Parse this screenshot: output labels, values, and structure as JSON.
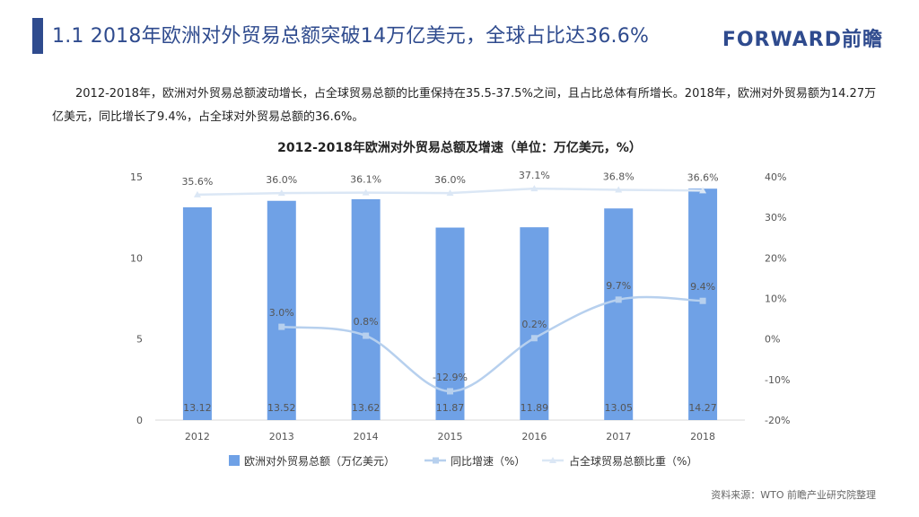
{
  "header": {
    "title": "1.1 2018年欧洲对外贸易总额突破14万亿美元，全球占比达36.6%",
    "logo": "FORWARD前瞻"
  },
  "paragraph": "2012-2018年，欧洲对外贸易总额波动增长，占全球贸易总额的比重保持在35.5-37.5%之间，且占比总体有所增长。2018年，欧洲对外贸易额为14.27万亿美元，同比增长了9.4%，占全球对外贸易总额的36.6%。",
  "source": "资料来源：WTO  前瞻产业研究院整理",
  "colors": {
    "bar": "#6fa1e6",
    "growth": "#b7d0ee",
    "share": "#dbe7f5"
  },
  "chart_data": {
    "type": "bar",
    "title": "2012-2018年欧洲对外贸易总额及增速（单位：万亿美元，%）",
    "categories": [
      "2012",
      "2013",
      "2014",
      "2015",
      "2016",
      "2017",
      "2018"
    ],
    "series": [
      {
        "name": "欧洲对外贸易总额（万亿美元）",
        "type": "bar",
        "axis": "left",
        "values": [
          13.12,
          13.52,
          13.62,
          11.87,
          11.89,
          13.05,
          14.27
        ],
        "labels": [
          "13.12",
          "13.52",
          "13.62",
          "11.87",
          "11.89",
          "13.05",
          "14.27"
        ]
      },
      {
        "name": "同比增速（%）",
        "type": "line",
        "axis": "right",
        "smooth": true,
        "values": [
          null,
          3.0,
          0.8,
          -12.9,
          0.2,
          9.7,
          9.4
        ],
        "labels": [
          "",
          "3.0%",
          "0.8%",
          "-12.9%",
          "0.2%",
          "9.7%",
          "9.4%"
        ]
      },
      {
        "name": "占全球贸易总额比重（%）",
        "type": "line",
        "axis": "right",
        "values": [
          35.6,
          36.0,
          36.1,
          36.0,
          37.1,
          36.8,
          36.6
        ],
        "labels": [
          "35.6%",
          "36.0%",
          "36.1%",
          "36.0%",
          "37.1%",
          "36.8%",
          "36.6%"
        ]
      }
    ],
    "yleft": {
      "range": [
        0,
        15
      ],
      "ticks": [
        "0",
        "5",
        "10",
        "15"
      ]
    },
    "yright": {
      "range": [
        -20,
        40
      ],
      "ticks": [
        "-20%",
        "-10%",
        "0%",
        "10%",
        "20%",
        "30%",
        "40%"
      ]
    },
    "legend_position": "bottom"
  }
}
